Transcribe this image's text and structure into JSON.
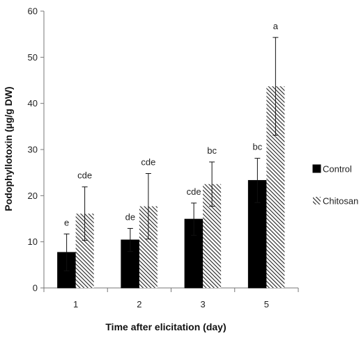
{
  "chart_data": {
    "type": "bar",
    "xlabel": "Time after elicitation (day)",
    "ylabel": "Podophyllotoxin (µg/g DW)",
    "categories": [
      "1",
      "2",
      "3",
      "5"
    ],
    "ylim": [
      0,
      60
    ],
    "yticks": [
      0,
      10,
      20,
      30,
      40,
      50,
      60
    ],
    "grid": false,
    "legend_position": "right",
    "series": [
      {
        "name": "Control",
        "color": "#000000",
        "pattern": "solid",
        "values": [
          7.7,
          10.4,
          14.9,
          23.3
        ],
        "error": [
          4.0,
          2.5,
          3.5,
          4.8
        ],
        "labels": [
          "e",
          "de",
          "cde",
          "bc"
        ]
      },
      {
        "name": "Chitosan",
        "color": "#222222",
        "pattern": "diagonal-hatch",
        "values": [
          16.1,
          17.7,
          22.5,
          43.7
        ],
        "error": [
          5.8,
          7.1,
          4.8,
          10.6
        ],
        "labels": [
          "cde",
          "cde",
          "bc",
          "a"
        ]
      }
    ]
  }
}
